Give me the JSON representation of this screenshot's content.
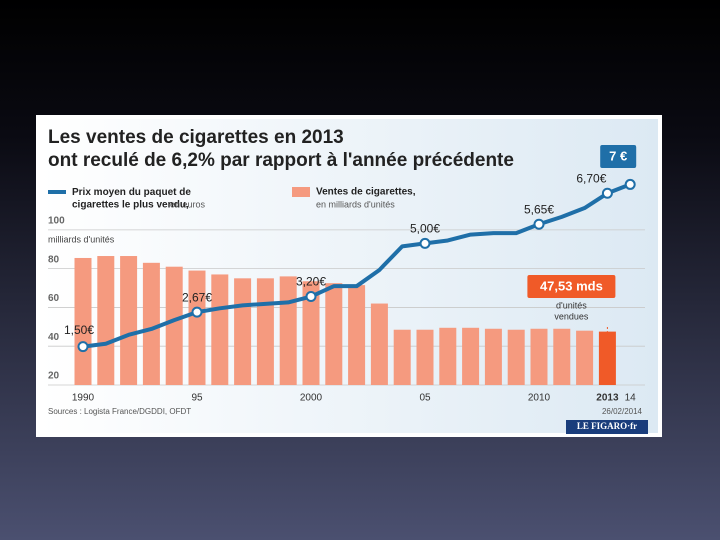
{
  "chart_data": {
    "type": "bar-line",
    "title": [
      "Les ventes de cigarettes en 2013",
      "ont reculé de 6,2% par rapport à l'année précédente"
    ],
    "categories": [
      "1990",
      null,
      null,
      null,
      null,
      "95",
      null,
      null,
      null,
      null,
      "2000",
      null,
      null,
      null,
      null,
      "05",
      null,
      null,
      null,
      null,
      "2010",
      null,
      null,
      "2013",
      "14"
    ],
    "series": [
      {
        "name": "Ventes de cigarettes,",
        "subtitle": "en milliards d'unités",
        "type": "bar",
        "colors": [
          "#f59a7f",
          "#f59a7f",
          "#f59a7f",
          "#f59a7f",
          "#f59a7f",
          "#f59a7f",
          "#f59a7f",
          "#f59a7f",
          "#f59a7f",
          "#f59a7f",
          "#f59a7f",
          "#f59a7f",
          "#f59a7f",
          "#f59a7f",
          "#f59a7f",
          "#f59a7f",
          "#f59a7f",
          "#f59a7f",
          "#f59a7f",
          "#f59a7f",
          "#f59a7f",
          "#f59a7f",
          "#f59a7f",
          "#f05a28",
          null
        ],
        "values": [
          85.5,
          86.5,
          86.5,
          83,
          81,
          79,
          77,
          75,
          75,
          76,
          73.5,
          72.5,
          71.5,
          62,
          48.5,
          48.5,
          49.5,
          49.5,
          49,
          48.5,
          49,
          49,
          48,
          47.53,
          null
        ],
        "value_labels": [
          null,
          null,
          null,
          null,
          null,
          null,
          null,
          null,
          null,
          null,
          null,
          null,
          null,
          null,
          null,
          null,
          null,
          null,
          null,
          null,
          null,
          null,
          null,
          "47,53 mds",
          null
        ]
      },
      {
        "name": "Prix moyen du paquet de cigarettes le plus vendu,",
        "subtitle": "en euros",
        "type": "line",
        "axis": "y2",
        "color": "#1f6fa8",
        "values": [
          1.5,
          1.6,
          1.9,
          2.1,
          2.4,
          2.67,
          2.8,
          2.9,
          2.95,
          3.0,
          3.2,
          3.55,
          3.55,
          4.1,
          4.9,
          5.0,
          5.1,
          5.3,
          5.35,
          5.35,
          5.65,
          5.9,
          6.2,
          6.7,
          7
        ],
        "value_labels": [
          "1,50€",
          null,
          null,
          null,
          null,
          "2,67€",
          null,
          null,
          null,
          null,
          "3,20€",
          null,
          null,
          null,
          null,
          "5,00€",
          null,
          null,
          null,
          null,
          "5,65€",
          null,
          null,
          "6,70€",
          "7 €"
        ]
      }
    ],
    "annotation": [
      "d'unités",
      "vendues"
    ],
    "ylabel": "milliards d'unités",
    "ylim": [
      20,
      125.7
    ],
    "yticks": [
      20,
      40,
      60,
      80,
      100
    ],
    "y2lim": [
      0.2,
      7.15
    ],
    "grid": true,
    "source": "Sources : Logista France/DGDDI, OFDT",
    "date": "26/02/2014",
    "logo": "LE FIGARO·fr"
  }
}
